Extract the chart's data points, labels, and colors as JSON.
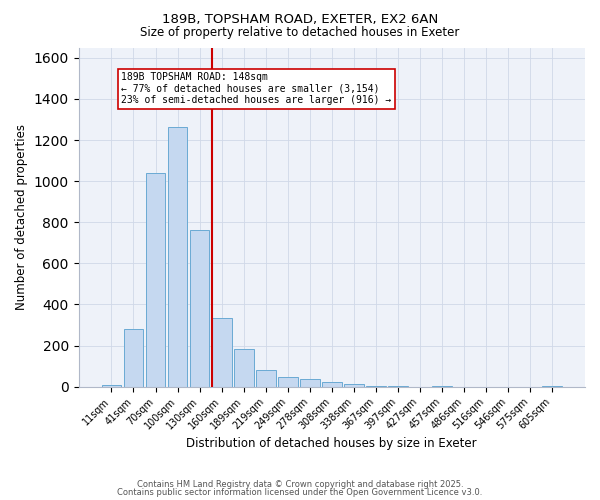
{
  "title1": "189B, TOPSHAM ROAD, EXETER, EX2 6AN",
  "title2": "Size of property relative to detached houses in Exeter",
  "xlabel": "Distribution of detached houses by size in Exeter",
  "ylabel": "Number of detached properties",
  "bar_labels": [
    "11sqm",
    "41sqm",
    "70sqm",
    "100sqm",
    "130sqm",
    "160sqm",
    "189sqm",
    "219sqm",
    "249sqm",
    "278sqm",
    "308sqm",
    "338sqm",
    "367sqm",
    "397sqm",
    "427sqm",
    "457sqm",
    "486sqm",
    "516sqm",
    "546sqm",
    "575sqm",
    "605sqm"
  ],
  "bar_values": [
    10,
    280,
    1040,
    1265,
    760,
    335,
    185,
    80,
    48,
    37,
    22,
    12,
    5,
    3,
    0,
    5,
    0,
    0,
    0,
    0,
    3
  ],
  "bar_color": "#c5d8f0",
  "bar_edge_color": "#6aaad4",
  "property_label": "189B TOPSHAM ROAD: 148sqm",
  "annotation_line1": "← 77% of detached houses are smaller (3,154)",
  "annotation_line2": "23% of semi-detached houses are larger (916) →",
  "vline_color": "#cc0000",
  "vline_x": 4.58,
  "grid_color": "#d0d8e8",
  "background_color": "#eef2f9",
  "footer1": "Contains HM Land Registry data © Crown copyright and database right 2025.",
  "footer2": "Contains public sector information licensed under the Open Government Licence v3.0.",
  "ylim": [
    0,
    1650
  ],
  "yticks": [
    0,
    200,
    400,
    600,
    800,
    1000,
    1200,
    1400,
    1600
  ]
}
